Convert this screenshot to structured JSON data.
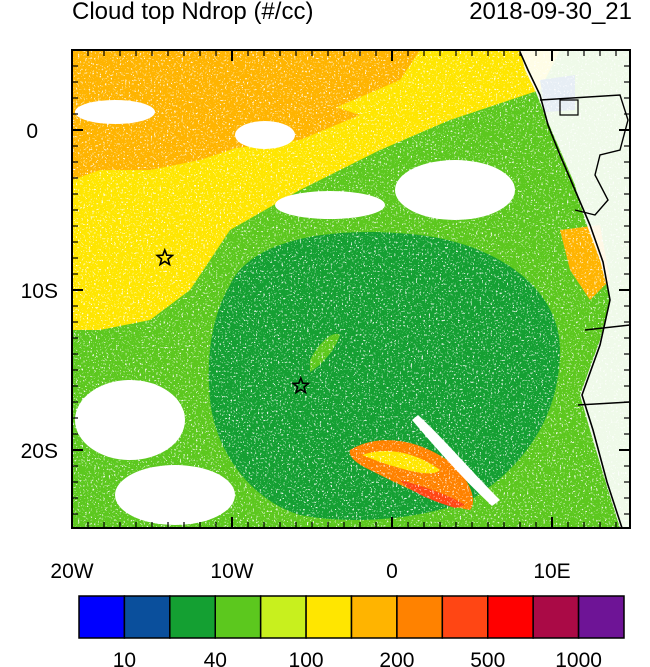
{
  "header": {
    "title": "Cloud top Ndrop (#/cc)",
    "timestamp": "2018-09-30_21"
  },
  "map": {
    "x_ticks": [
      "20W",
      "10W",
      "0",
      "10E"
    ],
    "y_ticks": [
      "0",
      "10S",
      "20S"
    ],
    "markers": [
      {
        "name": "star-marker-north",
        "lon": -14.2,
        "lat": -8.0
      },
      {
        "name": "star-marker-south",
        "lon": -5.7,
        "lat": -16.0
      }
    ]
  },
  "colorbar": {
    "colors": [
      "#0000ff",
      "#0a4f9c",
      "#14a032",
      "#5cc81e",
      "#c8f01e",
      "#ffe600",
      "#ffb400",
      "#ff8200",
      "#ff4614",
      "#ff0000",
      "#aa0a46",
      "#6e1496"
    ],
    "tick_labels": [
      "10",
      "40",
      "100",
      "200",
      "500",
      "1000"
    ]
  }
}
